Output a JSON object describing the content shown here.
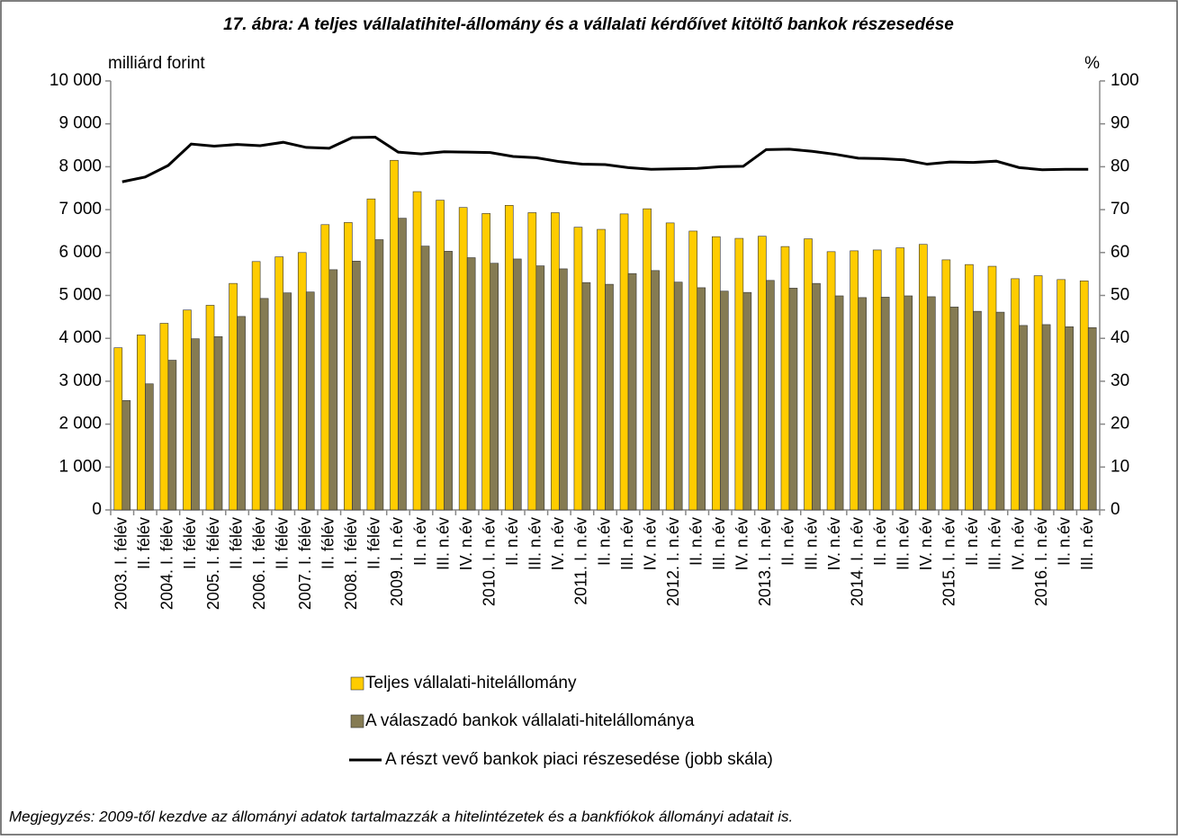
{
  "chart_data": {
    "type": "bar",
    "title": "17. ábra: A teljes vállalatihitel-állomány és a vállalati kérdőívet kitöltő bankok részesedése",
    "y_label": "milliárd forint",
    "y2_label": "%",
    "note": "Megjegyzés: 2009-től kezdve az állományi adatok tartalmazzák a hitelintézetek és a bankfiókok állományi adatait is.",
    "categories": [
      "2003. I. félév",
      "II. félév",
      "2004. I. félév",
      "II. félév",
      "2005. I. félév",
      "II. félév",
      "2006. I. félév",
      "II. félév",
      "2007. I. félév",
      "II. félév",
      "2008. I. félév",
      "II. félév",
      "2009. I. n.év",
      "II. n.év",
      "III. n.év",
      "IV. n.év",
      "2010. I. n.év",
      "II. n.év",
      "III. n.év",
      "IV. n.év",
      "2011. I. n.év",
      "II. n.év",
      "III. n.év",
      "IV. n.év",
      "2012. I. n.év",
      "II. n.év",
      "III. n.év",
      "IV. n.év",
      "2013. I. n.év",
      "II. n.év",
      "III. n.év",
      "IV. n.év",
      "2014. I. n.év",
      "II. n.év",
      "III. n.év",
      "IV. n.év",
      "2015. I. n.év",
      "II. n.év",
      "III. n.év",
      "IV. n.év",
      "2016. I. n.év",
      "II. n.év",
      "III. n.év"
    ],
    "series": [
      {
        "name": "Teljes vállalati-hitelállomány",
        "type": "bar",
        "color": "#FFCC00",
        "values": [
          3780,
          4080,
          4350,
          4660,
          4770,
          5280,
          5790,
          5900,
          6000,
          6650,
          6700,
          7250,
          8150,
          7420,
          7220,
          7050,
          6910,
          7100,
          6930,
          6930,
          6590,
          6540,
          6900,
          7020,
          6690,
          6500,
          6370,
          6330,
          6380,
          6140,
          6320,
          6020,
          6040,
          6060,
          6110,
          6190,
          5830,
          5720,
          5680,
          5390,
          5460,
          5370,
          5340
        ]
      },
      {
        "name": "A válaszadó bankok vállalati-hitelállománya",
        "type": "bar",
        "color": "#857B53",
        "values": [
          2550,
          2940,
          3490,
          3990,
          4040,
          4510,
          4930,
          5060,
          5080,
          5600,
          5800,
          6300,
          6800,
          6150,
          6030,
          5880,
          5750,
          5850,
          5690,
          5620,
          5300,
          5260,
          5510,
          5580,
          5310,
          5180,
          5100,
          5070,
          5350,
          5170,
          5280,
          4990,
          4950,
          4960,
          4990,
          4970,
          4730,
          4630,
          4610,
          4300,
          4320,
          4270,
          4250
        ]
      },
      {
        "name": "A részt vevő bankok piaci részesedése (jobb skála)",
        "type": "line",
        "axis": "y2",
        "color": "#000000",
        "values": [
          76.5,
          77.6,
          80.3,
          85.3,
          84.8,
          85.2,
          84.9,
          85.7,
          84.5,
          84.3,
          86.8,
          86.9,
          83.4,
          83.0,
          83.5,
          83.4,
          83.3,
          82.4,
          82.1,
          81.2,
          80.6,
          80.5,
          79.8,
          79.4,
          79.5,
          79.6,
          80.0,
          80.1,
          84.0,
          84.1,
          83.6,
          82.9,
          82.0,
          81.9,
          81.6,
          80.6,
          81.1,
          81.0,
          81.3,
          79.8,
          79.3,
          79.4,
          79.4
        ]
      }
    ],
    "ylim": [
      0,
      10000
    ],
    "yticks": [
      0,
      {
        "value": 1000,
        "label": "1 000"
      },
      {
        "value": 2000,
        "label": "2 000"
      },
      {
        "value": 3000,
        "label": "3 000"
      },
      {
        "value": 4000,
        "label": "4 000"
      },
      {
        "value": 5000,
        "label": "5 000"
      },
      {
        "value": 6000,
        "label": "6 000"
      },
      {
        "value": 7000,
        "label": "7 000"
      },
      {
        "value": 8000,
        "label": "8 000"
      },
      {
        "value": 9000,
        "label": "9 000"
      },
      {
        "value": 10000,
        "label": "10 000"
      }
    ],
    "y2lim": [
      0,
      100
    ],
    "y2ticks": [
      0,
      10,
      20,
      30,
      40,
      50,
      60,
      70,
      80,
      90,
      100
    ],
    "grid": false
  }
}
